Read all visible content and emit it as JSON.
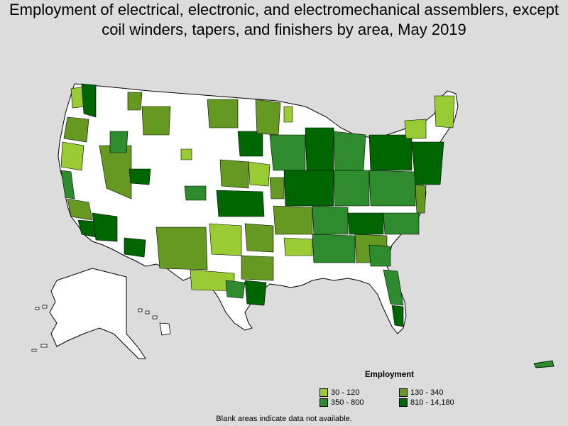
{
  "title": "Employment of electrical, electronic, and electromechanical assemblers, except coil winders, tapers, and finishers by area, May 2019",
  "legend": {
    "title": "Employment",
    "items": [
      {
        "label": "30 - 120",
        "color": "#99cc33"
      },
      {
        "label": "130 - 340",
        "color": "#669922"
      },
      {
        "label": "350 - 800",
        "color": "#2e8b2e"
      },
      {
        "label": "810 - 14,180",
        "color": "#006600"
      }
    ]
  },
  "note": "Blank areas indicate data not available.",
  "colors": {
    "background": "#dcdcdc",
    "no_data": "#ffffff",
    "border": "#000000"
  }
}
